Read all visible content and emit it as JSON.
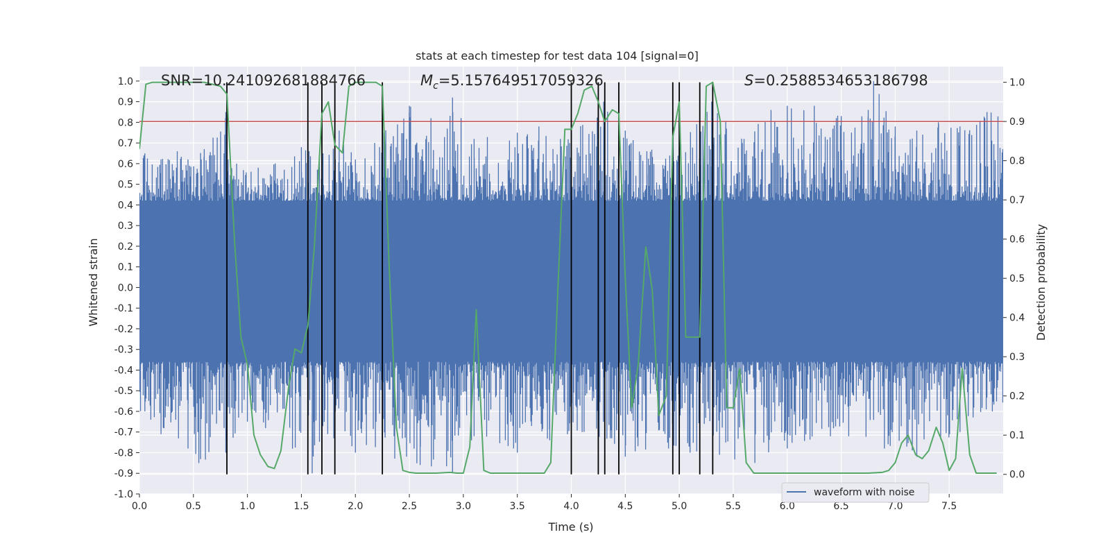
{
  "chart_data": {
    "type": "line",
    "title": "stats at each timestep for test data 104 [signal=0]",
    "xlabel": "Time (s)",
    "ylabel_left": "Whitened strain",
    "ylabel_right": "Detection probability",
    "xlim": [
      0.0,
      8.0
    ],
    "ylim_left": [
      -1.0,
      1.07
    ],
    "ylim_right": [
      -0.05,
      1.04
    ],
    "x_ticks": [
      "0.0",
      "0.5",
      "1.0",
      "1.5",
      "2.0",
      "2.5",
      "3.0",
      "3.5",
      "4.0",
      "4.5",
      "5.0",
      "5.5",
      "6.0",
      "6.5",
      "7.0",
      "7.5"
    ],
    "y_ticks_left": [
      "1.0",
      "0.9",
      "0.8",
      "0.7",
      "0.6",
      "0.5",
      "0.4",
      "0.3",
      "0.2",
      "0.1",
      "0.0",
      "-0.1",
      "-0.2",
      "-0.3",
      "-0.4",
      "-0.5",
      "-0.6",
      "-0.7",
      "-0.8",
      "-0.9",
      "-1.0"
    ],
    "y_ticks_right": [
      "1.0",
      "0.9",
      "0.8",
      "0.7",
      "0.6",
      "0.5",
      "0.4",
      "0.3",
      "0.2",
      "0.1",
      "0.0"
    ],
    "grid": true,
    "legend_position": "bottom-right",
    "annotations": {
      "snr": "SNR=10.241092681884766",
      "mc_symbol": "M",
      "mc_sub": "c",
      "mc_value": "=5.157649517059326",
      "s_symbol": "S",
      "s_value": "=0.2588534653186798"
    },
    "threshold": {
      "value": 0.9,
      "axis": "right",
      "color": "#c44e52"
    },
    "vertical_lines": [
      0.81,
      1.56,
      1.69,
      1.81,
      2.25,
      4.0,
      4.25,
      4.31,
      4.44,
      4.94,
      5.0,
      5.19,
      5.31
    ],
    "vertical_line_range_right": [
      0.0,
      1.0
    ],
    "series": [
      {
        "name": "waveform with noise",
        "axis": "left",
        "color": "#4c72b0",
        "description_envelope": {
          "core_band": [
            -0.36,
            0.42
          ],
          "peaks_positive": [
            [
              0.05,
              0.65
            ],
            [
              0.2,
              0.62
            ],
            [
              0.35,
              0.66
            ],
            [
              0.45,
              0.62
            ],
            [
              0.6,
              0.67
            ],
            [
              0.8,
              0.85
            ],
            [
              0.9,
              0.6
            ],
            [
              1.1,
              0.58
            ],
            [
              1.5,
              0.68
            ],
            [
              1.7,
              0.65
            ],
            [
              1.85,
              0.76
            ],
            [
              2.0,
              0.62
            ],
            [
              2.5,
              0.88
            ],
            [
              2.7,
              0.82
            ],
            [
              2.9,
              0.92
            ],
            [
              3.1,
              0.72
            ],
            [
              3.5,
              0.75
            ],
            [
              3.7,
              0.78
            ],
            [
              3.9,
              0.72
            ],
            [
              4.3,
              0.9
            ],
            [
              4.5,
              0.76
            ],
            [
              4.7,
              0.66
            ],
            [
              5.0,
              0.86
            ],
            [
              5.3,
              0.9
            ],
            [
              5.6,
              0.72
            ],
            [
              5.85,
              0.86
            ],
            [
              6.0,
              0.88
            ],
            [
              6.25,
              0.88
            ],
            [
              6.5,
              0.83
            ],
            [
              6.75,
              0.86
            ],
            [
              6.8,
              1.0
            ],
            [
              7.0,
              0.78
            ],
            [
              7.2,
              0.76
            ],
            [
              7.4,
              0.8
            ],
            [
              7.6,
              0.78
            ],
            [
              7.85,
              0.85
            ]
          ],
          "peaks_negative": [
            [
              0.05,
              -0.6
            ],
            [
              0.2,
              -0.71
            ],
            [
              0.45,
              -0.78
            ],
            [
              0.55,
              -0.85
            ],
            [
              0.8,
              -0.8
            ],
            [
              1.0,
              -0.65
            ],
            [
              1.6,
              -0.9
            ],
            [
              1.8,
              -0.73
            ],
            [
              2.0,
              -0.8
            ],
            [
              2.6,
              -0.86
            ],
            [
              2.9,
              -0.9
            ],
            [
              3.1,
              -0.72
            ],
            [
              3.5,
              -0.8
            ],
            [
              3.8,
              -0.74
            ],
            [
              4.1,
              -0.7
            ],
            [
              4.5,
              -0.82
            ],
            [
              4.9,
              -0.78
            ],
            [
              5.1,
              -0.8
            ],
            [
              5.7,
              -0.85
            ],
            [
              6.0,
              -0.78
            ],
            [
              6.4,
              -0.72
            ],
            [
              6.9,
              -0.78
            ],
            [
              7.2,
              -0.82
            ],
            [
              7.6,
              -0.7
            ],
            [
              7.9,
              -0.6
            ]
          ]
        }
      },
      {
        "name": "",
        "axis": "right",
        "color": "#55a868",
        "x": [
          0.0,
          0.06,
          0.12,
          0.25,
          0.45,
          0.6,
          0.75,
          0.81,
          0.88,
          0.94,
          1.0,
          1.06,
          1.12,
          1.19,
          1.25,
          1.31,
          1.38,
          1.44,
          1.5,
          1.56,
          1.62,
          1.69,
          1.75,
          1.81,
          1.88,
          1.94,
          2.0,
          2.06,
          2.12,
          2.19,
          2.25,
          2.31,
          2.38,
          2.44,
          2.5,
          2.56,
          2.62,
          2.75,
          2.88,
          2.94,
          3.0,
          3.06,
          3.12,
          3.19,
          3.25,
          3.31,
          3.44,
          3.56,
          3.75,
          3.81,
          3.88,
          3.94,
          4.0,
          4.06,
          4.12,
          4.19,
          4.25,
          4.31,
          4.38,
          4.44,
          4.5,
          4.56,
          4.62,
          4.69,
          4.75,
          4.81,
          4.88,
          4.94,
          5.0,
          5.06,
          5.12,
          5.19,
          5.25,
          5.31,
          5.38,
          5.44,
          5.5,
          5.56,
          5.62,
          5.69,
          5.75,
          5.88,
          6.25,
          6.75,
          6.88,
          6.94,
          7.0,
          7.06,
          7.12,
          7.19,
          7.25,
          7.31,
          7.38,
          7.44,
          7.5,
          7.56,
          7.62,
          7.69,
          7.75,
          7.88,
          7.94
        ],
        "y": [
          0.83,
          0.995,
          1.0,
          1.0,
          1.0,
          1.0,
          0.99,
          0.97,
          0.6,
          0.35,
          0.28,
          0.1,
          0.05,
          0.02,
          0.015,
          0.06,
          0.22,
          0.32,
          0.31,
          0.38,
          0.58,
          0.92,
          0.95,
          0.84,
          0.82,
          0.99,
          1.0,
          1.0,
          1.0,
          1.0,
          0.99,
          0.55,
          0.12,
          0.01,
          0.005,
          0.003,
          0.003,
          0.003,
          0.005,
          0.003,
          0.003,
          0.07,
          0.42,
          0.01,
          0.003,
          0.003,
          0.003,
          0.003,
          0.003,
          0.03,
          0.5,
          0.88,
          0.88,
          0.92,
          0.98,
          0.99,
          0.95,
          0.9,
          0.93,
          0.92,
          0.5,
          0.17,
          0.28,
          0.58,
          0.47,
          0.15,
          0.2,
          0.86,
          0.95,
          0.35,
          0.35,
          0.35,
          0.99,
          1.0,
          0.9,
          0.17,
          0.17,
          0.27,
          0.03,
          0.003,
          0.003,
          0.003,
          0.003,
          0.003,
          0.005,
          0.01,
          0.03,
          0.08,
          0.1,
          0.05,
          0.04,
          0.06,
          0.12,
          0.08,
          0.01,
          0.04,
          0.27,
          0.05,
          0.003,
          0.003,
          0.003
        ]
      }
    ]
  }
}
